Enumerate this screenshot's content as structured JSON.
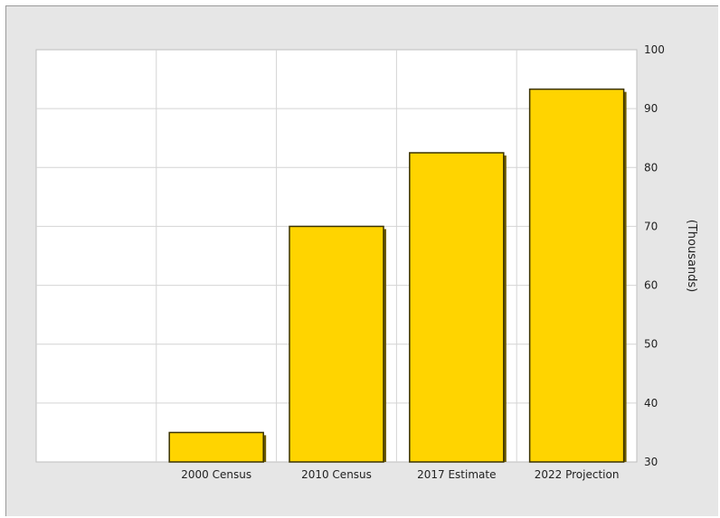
{
  "chart_data": {
    "type": "bar",
    "categories": [
      "2000 Census",
      "2010 Census",
      "2017 Estimate",
      "2022 Projection"
    ],
    "values": [
      35,
      70,
      82.5,
      93.3
    ],
    "title": "",
    "xlabel": "",
    "ylabel": "(Thousands)",
    "ylim": [
      30,
      100
    ],
    "yticks": [
      "30",
      "40",
      "50",
      "60",
      "70",
      "80",
      "90",
      "100"
    ],
    "grid": true,
    "y_axis_side": "right",
    "bar_color": "#ffd400",
    "bar_edge_color": "#3a3200"
  }
}
